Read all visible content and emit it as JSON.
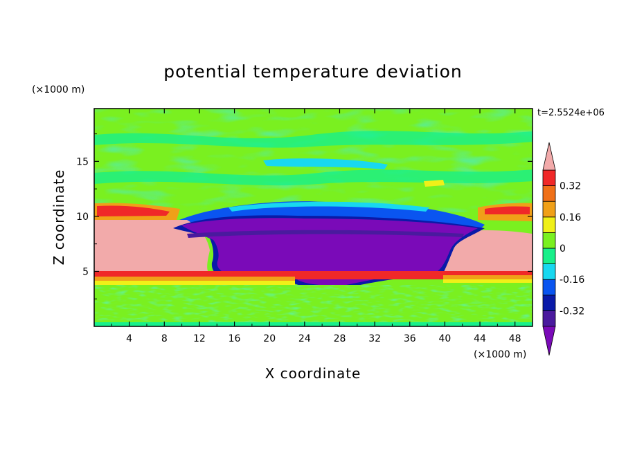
{
  "chart_data": {
    "type": "heatmap",
    "title": "potential temperature deviation",
    "xlabel": "X coordinate",
    "ylabel": "Z coordinate",
    "x_unit": "(×1000 m)",
    "y_unit": "(×1000 m)",
    "time_label": "t=2.5524e+06",
    "xlim": [
      0,
      50
    ],
    "ylim": [
      0,
      19.8
    ],
    "x_ticks": [
      "4",
      "8",
      "12",
      "16",
      "20",
      "24",
      "28",
      "32",
      "36",
      "40",
      "44",
      "48"
    ],
    "y_ticks": [
      "5",
      "10",
      "15"
    ],
    "colorbar": {
      "levels": [
        -0.4,
        -0.32,
        -0.24,
        -0.16,
        -0.08,
        0,
        0.08,
        0.16,
        0.24,
        0.32,
        0.4
      ],
      "colors": [
        "#7a0ab8",
        "#4a1a9e",
        "#0a1aa8",
        "#0a55f0",
        "#18d8f0",
        "#18f08a",
        "#7af020",
        "#f0f018",
        "#f0a018",
        "#f07018",
        "#f02828",
        "#f2aaaa"
      ],
      "tick_labels": [
        "0.32",
        "0.16",
        "0",
        "-0.16",
        "-0.32"
      ],
      "tick_values": [
        0.32,
        0.16,
        0,
        -0.16,
        -0.32
      ]
    },
    "regions": [
      {
        "name": "upper-green",
        "xrange": [
          0,
          50
        ],
        "zrange": [
          10.5,
          19.8
        ],
        "value": 0.03
      },
      {
        "name": "warm-band-left",
        "xrange": [
          0,
          8
        ],
        "zrange": [
          10,
          11
        ],
        "value": 0.3
      },
      {
        "name": "warm-band-right",
        "xrange": [
          42,
          50
        ],
        "zrange": [
          10,
          11
        ],
        "value": 0.3
      },
      {
        "name": "pink-left",
        "xrange": [
          0,
          12
        ],
        "zrange": [
          5.2,
          10
        ],
        "value": 0.42
      },
      {
        "name": "pink-right",
        "xrange": [
          41,
          50
        ],
        "zrange": [
          5.2,
          8.5
        ],
        "value": 0.42
      },
      {
        "name": "cold-pool",
        "xrange": [
          13,
          42
        ],
        "zrange": [
          3.7,
          10
        ],
        "value": -0.4
      },
      {
        "name": "red-band",
        "xrange": [
          0,
          50
        ],
        "zrange": [
          4.8,
          5.2
        ],
        "value": 0.34
      },
      {
        "name": "surface-layer",
        "xrange": [
          0,
          50
        ],
        "zrange": [
          0,
          3.7
        ],
        "value": 0.0
      }
    ]
  }
}
